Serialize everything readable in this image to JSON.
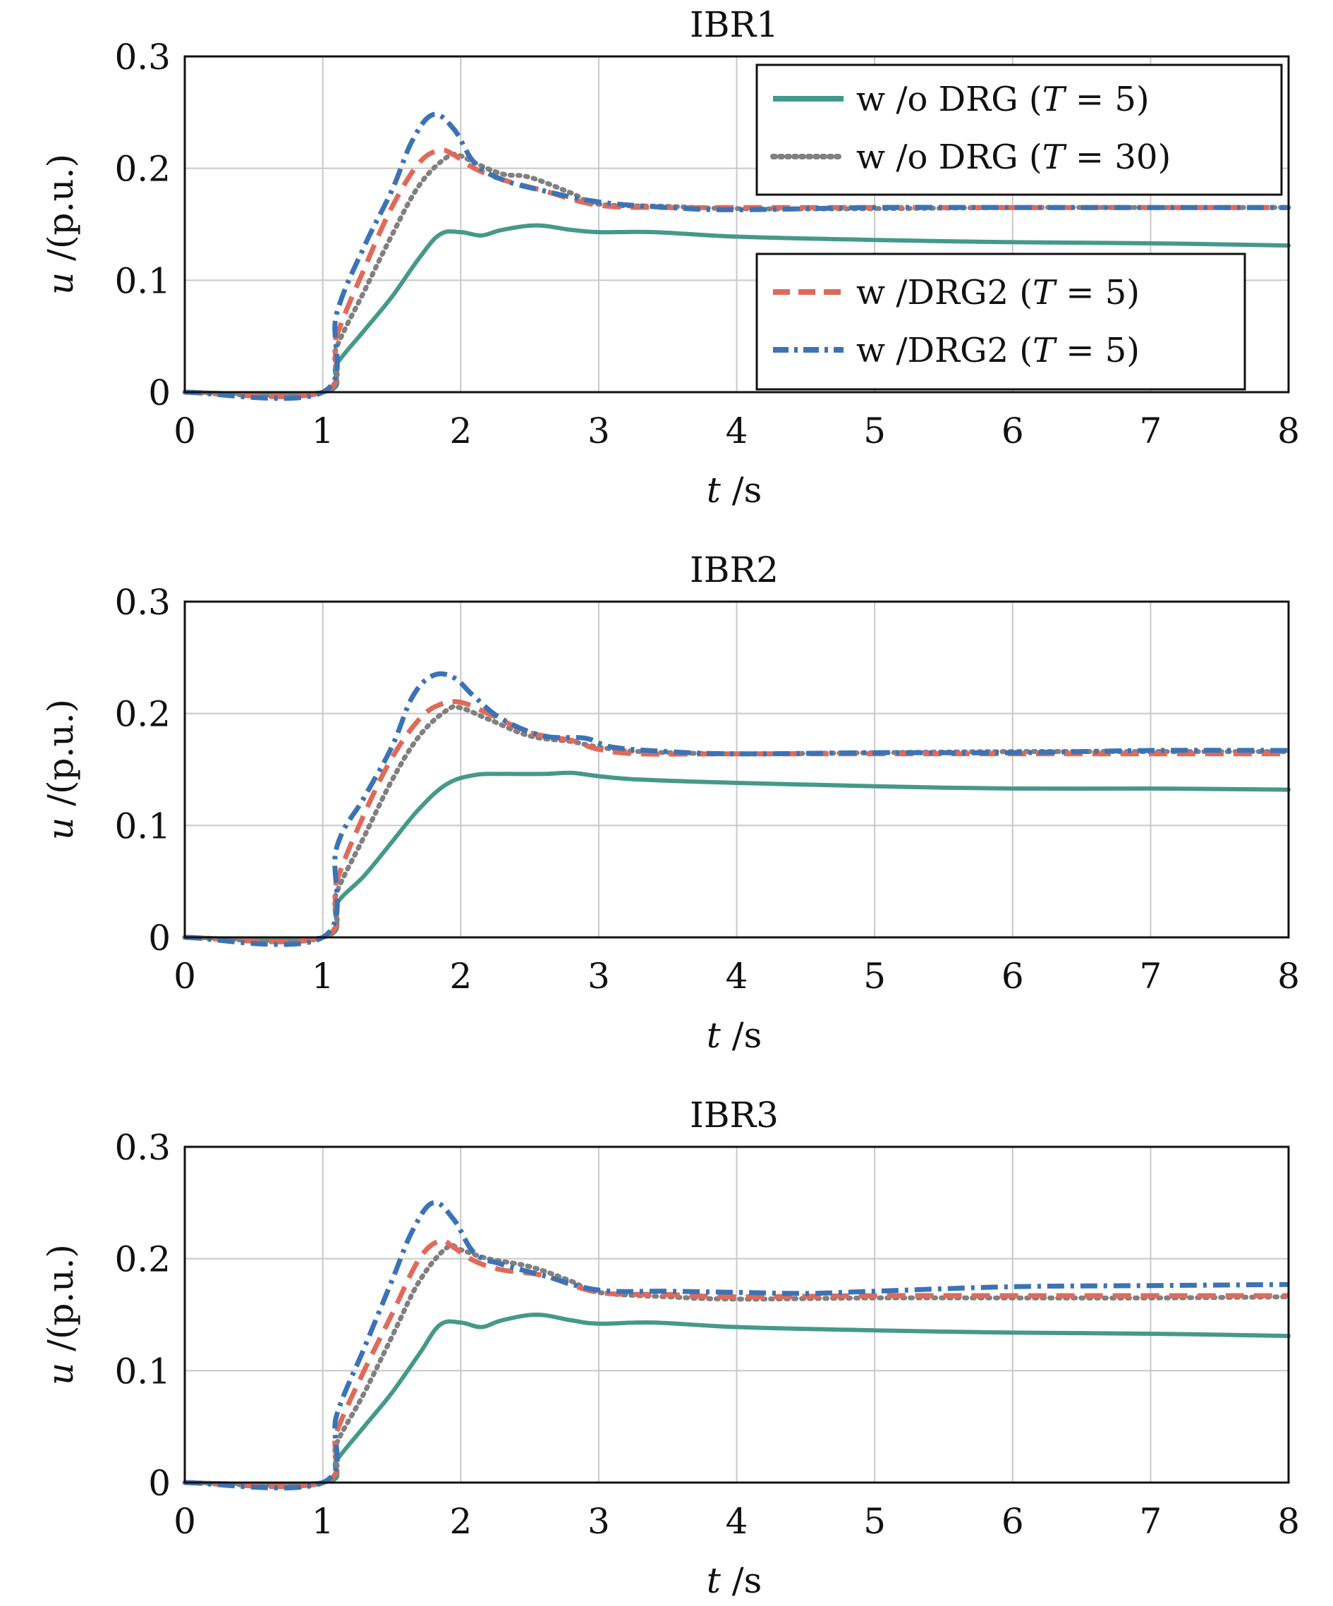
{
  "chart_data": [
    {
      "type": "line",
      "title": "IBR1",
      "xlabel_var": "t",
      "xlabel_unit": " /s",
      "ylabel_var": "u",
      "ylabel_unit": " /(p.u.)",
      "xlim": [
        0,
        8
      ],
      "ylim": [
        0,
        0.3
      ],
      "xticks": [
        "0",
        "1",
        "2",
        "3",
        "4",
        "5",
        "6",
        "7",
        "8"
      ],
      "yticks": [
        "0",
        "0.1",
        "0.2",
        "0.3"
      ],
      "grid": true,
      "legend_position": "top-right (two boxes)",
      "series": [
        {
          "name": "w /o DRG (T = 5)",
          "color": "#45998a",
          "style": "solid",
          "x": [
            0,
            1,
            1.1,
            1.3,
            1.5,
            1.7,
            1.85,
            2.0,
            2.15,
            2.3,
            2.55,
            2.8,
            3.0,
            3.4,
            4.0,
            5.0,
            6.0,
            7.0,
            8.0
          ],
          "y": [
            0,
            0,
            0.025,
            0.055,
            0.085,
            0.12,
            0.141,
            0.143,
            0.14,
            0.145,
            0.149,
            0.145,
            0.143,
            0.143,
            0.139,
            0.136,
            0.134,
            0.133,
            0.131
          ]
        },
        {
          "name": "w /o DRG (T = 30)",
          "color": "#808080",
          "style": "dotted",
          "x": [
            0,
            1,
            1.1,
            1.3,
            1.5,
            1.7,
            1.9,
            2.0,
            2.1,
            2.3,
            2.5,
            2.8,
            3.0,
            3.5,
            4.0,
            5.0,
            6.0,
            7.0,
            8.0
          ],
          "y": [
            0,
            0,
            0.04,
            0.09,
            0.14,
            0.185,
            0.21,
            0.211,
            0.205,
            0.195,
            0.192,
            0.178,
            0.168,
            0.166,
            0.164,
            0.164,
            0.165,
            0.165,
            0.165
          ]
        },
        {
          "name": "w /DRG2 (T = 5)",
          "color": "#e06a5a",
          "style": "dashed",
          "x": [
            0,
            1,
            1.1,
            1.3,
            1.5,
            1.7,
            1.85,
            1.95,
            2.1,
            2.3,
            2.6,
            3.0,
            3.5,
            4.0,
            5.0,
            6.0,
            7.0,
            8.0
          ],
          "y": [
            0,
            0,
            0.05,
            0.11,
            0.165,
            0.205,
            0.216,
            0.212,
            0.2,
            0.19,
            0.18,
            0.167,
            0.165,
            0.165,
            0.165,
            0.165,
            0.165,
            0.165
          ]
        },
        {
          "name": "w /DRG2 (T = 5)",
          "color": "#3b73b5",
          "style": "dashdot",
          "x": [
            0,
            1,
            1.1,
            1.3,
            1.5,
            1.65,
            1.8,
            1.95,
            2.1,
            2.3,
            2.6,
            3.0,
            3.5,
            4.0,
            5.0,
            6.0,
            7.0,
            8.0
          ],
          "y": [
            0,
            0,
            0.07,
            0.13,
            0.18,
            0.225,
            0.248,
            0.235,
            0.205,
            0.19,
            0.18,
            0.17,
            0.165,
            0.163,
            0.165,
            0.165,
            0.165,
            0.165
          ]
        }
      ]
    },
    {
      "type": "line",
      "title": "IBR2",
      "xlabel_var": "t",
      "xlabel_unit": " /s",
      "ylabel_var": "u",
      "ylabel_unit": " /(p.u.)",
      "xlim": [
        0,
        8
      ],
      "ylim": [
        0,
        0.3
      ],
      "xticks": [
        "0",
        "1",
        "2",
        "3",
        "4",
        "5",
        "6",
        "7",
        "8"
      ],
      "yticks": [
        "0",
        "0.1",
        "0.2",
        "0.3"
      ],
      "grid": true,
      "series": [
        {
          "name": "w /o DRG (T = 5)",
          "color": "#45998a",
          "style": "solid",
          "x": [
            0,
            1,
            1.1,
            1.3,
            1.5,
            1.7,
            1.9,
            2.1,
            2.3,
            2.6,
            2.8,
            3.0,
            3.3,
            4.0,
            5.0,
            6.0,
            7.0,
            8.0
          ],
          "y": [
            0,
            0,
            0.03,
            0.055,
            0.085,
            0.115,
            0.137,
            0.145,
            0.146,
            0.146,
            0.147,
            0.144,
            0.141,
            0.138,
            0.135,
            0.133,
            0.133,
            0.132
          ]
        },
        {
          "name": "w /o DRG (T = 30)",
          "color": "#808080",
          "style": "dotted",
          "x": [
            0,
            1,
            1.1,
            1.3,
            1.5,
            1.7,
            1.9,
            2.0,
            2.2,
            2.5,
            2.8,
            3.0,
            3.3,
            4.0,
            5.0,
            6.0,
            7.0,
            8.0
          ],
          "y": [
            0,
            0,
            0.04,
            0.09,
            0.14,
            0.18,
            0.203,
            0.205,
            0.195,
            0.18,
            0.175,
            0.17,
            0.166,
            0.164,
            0.165,
            0.166,
            0.166,
            0.166
          ]
        },
        {
          "name": "w /DRG2 (T = 5)",
          "color": "#e06a5a",
          "style": "dashed",
          "x": [
            0,
            1,
            1.1,
            1.3,
            1.5,
            1.7,
            1.85,
            2.0,
            2.2,
            2.5,
            2.8,
            3.0,
            3.3,
            4.0,
            5.0,
            6.0,
            7.0,
            8.0
          ],
          "y": [
            0,
            0,
            0.05,
            0.11,
            0.16,
            0.195,
            0.208,
            0.21,
            0.2,
            0.183,
            0.176,
            0.168,
            0.164,
            0.164,
            0.164,
            0.164,
            0.164,
            0.164
          ]
        },
        {
          "name": "w /DRG2 (T = 5)",
          "color": "#3b73b5",
          "style": "dashdot",
          "x": [
            0,
            1,
            1.1,
            1.3,
            1.5,
            1.65,
            1.8,
            1.95,
            2.1,
            2.3,
            2.6,
            2.9,
            3.1,
            3.5,
            4.0,
            5.0,
            6.0,
            7.0,
            8.0
          ],
          "y": [
            0,
            0,
            0.08,
            0.125,
            0.17,
            0.215,
            0.234,
            0.232,
            0.215,
            0.195,
            0.18,
            0.178,
            0.17,
            0.166,
            0.164,
            0.165,
            0.165,
            0.167,
            0.167
          ]
        }
      ]
    },
    {
      "type": "line",
      "title": "IBR3",
      "xlabel_var": "t",
      "xlabel_unit": " /s",
      "ylabel_var": "u",
      "ylabel_unit": " /(p.u.)",
      "xlim": [
        0,
        8
      ],
      "ylim": [
        0,
        0.3
      ],
      "xticks": [
        "0",
        "1",
        "2",
        "3",
        "4",
        "5",
        "6",
        "7",
        "8"
      ],
      "yticks": [
        "0",
        "0.1",
        "0.2",
        "0.3"
      ],
      "grid": true,
      "series": [
        {
          "name": "w /o DRG (T = 5)",
          "color": "#45998a",
          "style": "solid",
          "x": [
            0,
            1,
            1.1,
            1.3,
            1.5,
            1.7,
            1.85,
            2.0,
            2.15,
            2.3,
            2.55,
            2.8,
            3.0,
            3.4,
            4.0,
            5.0,
            6.0,
            7.0,
            8.0
          ],
          "y": [
            0,
            0,
            0.02,
            0.05,
            0.08,
            0.115,
            0.141,
            0.143,
            0.139,
            0.145,
            0.15,
            0.145,
            0.142,
            0.143,
            0.139,
            0.136,
            0.134,
            0.133,
            0.131
          ]
        },
        {
          "name": "w /o DRG (T = 30)",
          "color": "#808080",
          "style": "dotted",
          "x": [
            0,
            1,
            1.1,
            1.3,
            1.5,
            1.7,
            1.9,
            2.0,
            2.2,
            2.5,
            2.8,
            3.0,
            3.5,
            4.0,
            5.0,
            6.0,
            7.0,
            8.0
          ],
          "y": [
            0,
            0,
            0.035,
            0.08,
            0.13,
            0.18,
            0.21,
            0.208,
            0.2,
            0.193,
            0.18,
            0.17,
            0.166,
            0.164,
            0.165,
            0.165,
            0.165,
            0.166
          ]
        },
        {
          "name": "w /DRG2 (T = 5)",
          "color": "#e06a5a",
          "style": "dashed",
          "x": [
            0,
            1,
            1.1,
            1.3,
            1.5,
            1.7,
            1.85,
            1.95,
            2.1,
            2.3,
            2.6,
            3.0,
            3.5,
            4.0,
            5.0,
            6.0,
            7.0,
            8.0
          ],
          "y": [
            0,
            0,
            0.045,
            0.1,
            0.15,
            0.2,
            0.216,
            0.21,
            0.198,
            0.19,
            0.185,
            0.17,
            0.168,
            0.166,
            0.167,
            0.167,
            0.167,
            0.167
          ]
        },
        {
          "name": "w /DRG2 (T = 5)",
          "color": "#3b73b5",
          "style": "dashdot",
          "x": [
            0,
            1,
            1.1,
            1.3,
            1.5,
            1.65,
            1.8,
            1.95,
            2.1,
            2.3,
            2.6,
            3.0,
            3.5,
            4.0,
            4.5,
            5.0,
            6.0,
            7.0,
            8.0
          ],
          "y": [
            0,
            0,
            0.06,
            0.12,
            0.18,
            0.225,
            0.25,
            0.235,
            0.205,
            0.195,
            0.185,
            0.172,
            0.171,
            0.17,
            0.169,
            0.171,
            0.175,
            0.176,
            0.177
          ]
        }
      ]
    }
  ],
  "legend_top": [
    {
      "label": "w /o DRG (T = 5)",
      "color": "#45998a",
      "style": "solid"
    },
    {
      "label": "w /o DRG (T = 30)",
      "color": "#808080",
      "style": "dotted"
    }
  ],
  "legend_bottom": [
    {
      "label": "w /DRG2 (T = 5)",
      "color": "#e06a5a",
      "style": "dashed"
    },
    {
      "label": "w /DRG2 (T = 5)",
      "color": "#3b73b5",
      "style": "dashdot"
    }
  ],
  "legend_text": {
    "l1_pre": "w /o DRG (",
    "l1_var": "T",
    "l1_post": " = 5)",
    "l2_pre": "w /o DRG (",
    "l2_var": "T",
    "l2_post": " = 30)",
    "l3_pre": "w /DRG2 (",
    "l3_var": "T",
    "l3_post": " = 5)",
    "l4_pre": "w /DRG2 (",
    "l4_var": "T",
    "l4_post": " = 5)"
  }
}
